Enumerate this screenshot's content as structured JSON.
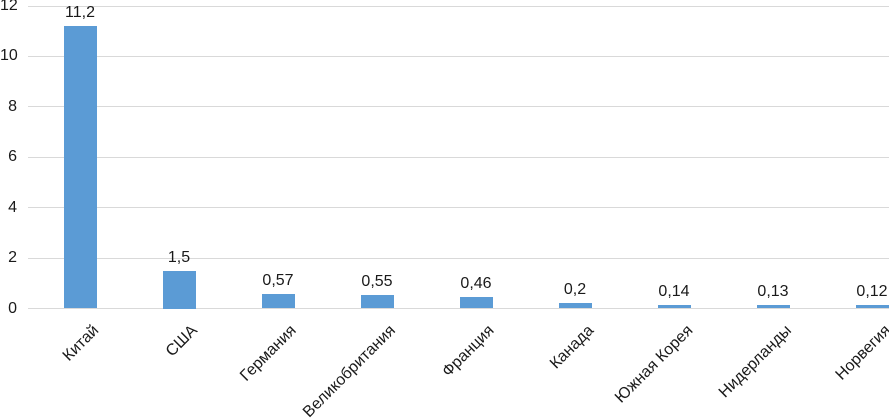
{
  "chart_data": {
    "type": "bar",
    "title": "",
    "xlabel": "",
    "ylabel": "",
    "categories": [
      "Китай",
      "США",
      "Германия",
      "Великобритания",
      "Франция",
      "Канада",
      "Южная Корея",
      "Нидерланды",
      "Норвегия"
    ],
    "values": [
      11.2,
      1.5,
      0.57,
      0.55,
      0.46,
      0.2,
      0.14,
      0.13,
      0.12
    ],
    "value_labels": [
      "11,2",
      "1,5",
      "0,57",
      "0,55",
      "0,46",
      "0,2",
      "0,14",
      "0,13",
      "0,12"
    ],
    "ylim": [
      0,
      12
    ],
    "yticks": [
      0,
      2,
      4,
      6,
      8,
      10,
      12
    ],
    "ytick_labels": [
      "0",
      "2",
      "4",
      "6",
      "8",
      "10",
      "12"
    ],
    "grid": true,
    "legend": false,
    "category_label_rotation_deg": -45,
    "colors": {
      "bar": "#5B9BD5",
      "gridline": "#D9D9D9",
      "text": "#1A1A1A"
    }
  }
}
